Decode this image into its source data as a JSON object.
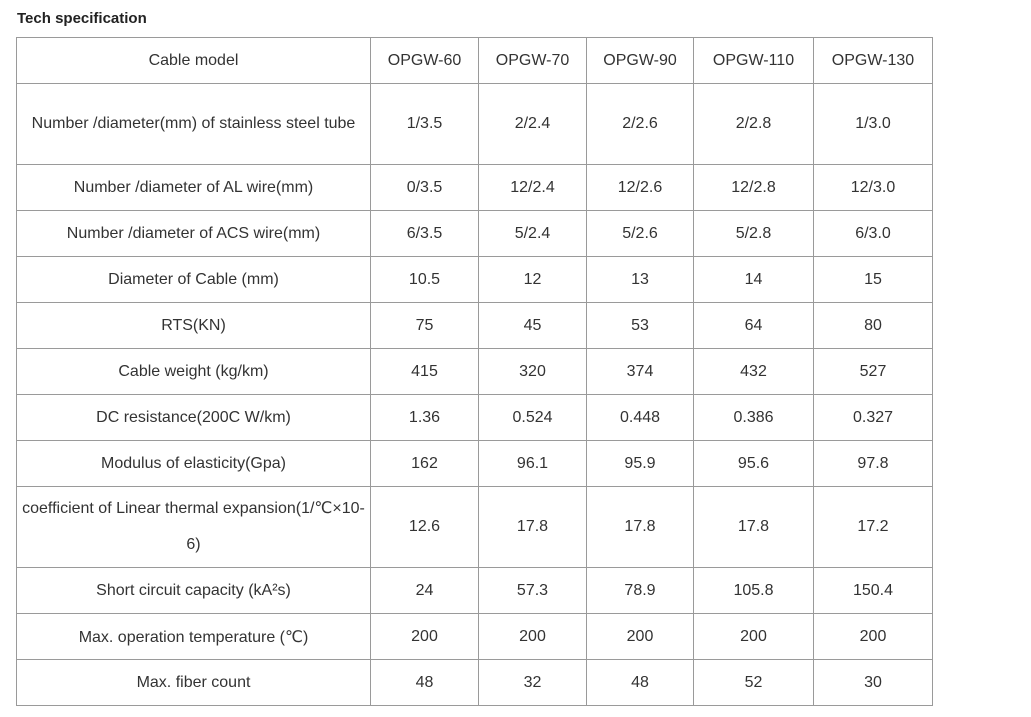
{
  "title": "Tech specification",
  "table": {
    "header": [
      "Cable model",
      "OPGW-60",
      "OPGW-70",
      "OPGW-90",
      "OPGW-110",
      "OPGW-130"
    ],
    "rows": [
      {
        "label": "Number /diameter(mm) of stainless steel tube",
        "values": [
          "1/3.5",
          "2/2.4",
          "2/2.6",
          "2/2.8",
          "1/3.0"
        ]
      },
      {
        "label": "Number /diameter of AL wire(mm)",
        "values": [
          "0/3.5",
          "12/2.4",
          "12/2.6",
          "12/2.8",
          "12/3.0"
        ]
      },
      {
        "label": "Number /diameter of ACS wire(mm)",
        "values": [
          "6/3.5",
          "5/2.4",
          "5/2.6",
          "5/2.8",
          "6/3.0"
        ]
      },
      {
        "label": "Diameter of Cable (mm)",
        "values": [
          "10.5",
          "12",
          "13",
          "14",
          "15"
        ]
      },
      {
        "label": "RTS(KN)",
        "values": [
          "75",
          "45",
          "53",
          "64",
          "80"
        ]
      },
      {
        "label": "Cable weight (kg/km)",
        "values": [
          "415",
          "320",
          "374",
          "432",
          "527"
        ]
      },
      {
        "label": "DC resistance(200C W/km)",
        "values": [
          "1.36",
          "0.524",
          "0.448",
          "0.386",
          "0.327"
        ]
      },
      {
        "label": "Modulus of elasticity(Gpa)",
        "values": [
          "162",
          "96.1",
          "95.9",
          "95.6",
          "97.8"
        ]
      },
      {
        "label": "coefficient of Linear thermal expansion(1/℃×10-6)",
        "values": [
          "12.6",
          "17.8",
          "17.8",
          "17.8",
          "17.2"
        ]
      },
      {
        "label": "Short circuit capacity (kA²s)",
        "values": [
          "24",
          "57.3",
          "78.9",
          "105.8",
          "150.4"
        ]
      },
      {
        "label": "Max. operation temperature (℃)",
        "values": [
          "200",
          "200",
          "200",
          "200",
          "200"
        ]
      },
      {
        "label": "Max. fiber count",
        "values": [
          "48",
          "32",
          "48",
          "52",
          "30"
        ]
      }
    ]
  }
}
